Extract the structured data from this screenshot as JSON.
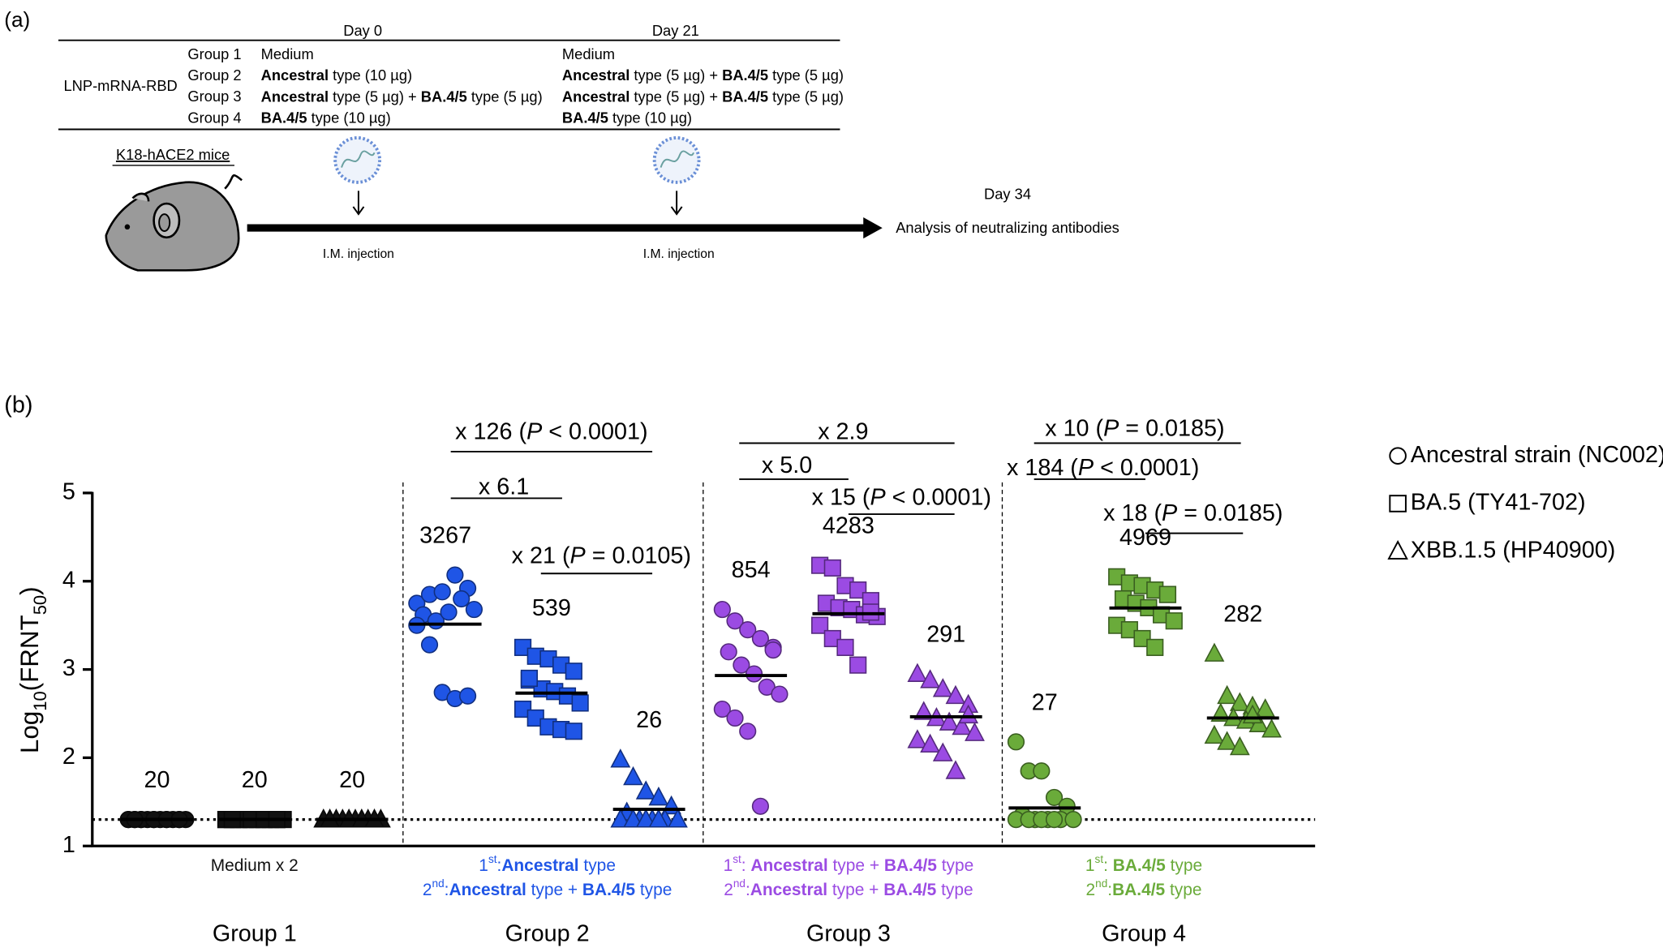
{
  "panel_a": {
    "label": "(a)",
    "days": [
      "Day 0",
      "Day 21"
    ],
    "vaccine": "LNP-mRNA-RBD",
    "rows": [
      {
        "group": "Group 1",
        "day0": [
          {
            "text": "Medium"
          }
        ],
        "day21": [
          {
            "text": "Medium"
          }
        ]
      },
      {
        "group": "Group 2",
        "day0": [
          {
            "text": "Ancestral",
            "bold": true
          },
          {
            "text": " type (10 µg)"
          }
        ],
        "day21": [
          {
            "text": "Ancestral",
            "bold": true
          },
          {
            "text": " type (5 µg) + "
          },
          {
            "text": "BA.4/5",
            "bold": true
          },
          {
            "text": " type (5 µg)"
          }
        ]
      },
      {
        "group": "Group 3",
        "day0": [
          {
            "text": "Ancestral",
            "bold": true
          },
          {
            "text": " type (5 µg) + "
          },
          {
            "text": "BA.4/5",
            "bold": true
          },
          {
            "text": " type (5 µg)"
          }
        ],
        "day21": [
          {
            "text": "Ancestral",
            "bold": true
          },
          {
            "text": " type (5 µg) + "
          },
          {
            "text": "BA.4/5",
            "bold": true
          },
          {
            "text": " type (5 µg)"
          }
        ]
      },
      {
        "group": "Group 4",
        "day0": [
          {
            "text": "BA.4/5",
            "bold": true
          },
          {
            "text": " type (10 µg)"
          }
        ],
        "day21": [
          {
            "text": "BA.4/5",
            "bold": true
          },
          {
            "text": " type (10 µg)"
          }
        ]
      }
    ],
    "mice": "K18-hACE2 mice",
    "injection": [
      "I.M. injection",
      "I.M. injection"
    ],
    "endpoint_day": "Day 34",
    "endpoint": "Analysis of neutralizing antibodies"
  },
  "chart_data": {
    "type": "scatter",
    "panel_label": "(b)",
    "y_label": [
      {
        "text": "Log"
      },
      {
        "text": "10",
        "sub": true
      },
      {
        "text": "(FRNT"
      },
      {
        "text": "50",
        "sub": true
      },
      {
        "text": ")"
      }
    ],
    "ylim": [
      1,
      5
    ],
    "yticks": [
      1,
      2,
      3,
      4,
      5
    ],
    "detection_limit": 1.3,
    "legend": [
      {
        "name": "Ancestral strain (NC002)",
        "shape": "circle"
      },
      {
        "name": "BA.5 (TY41-702)",
        "shape": "square"
      },
      {
        "name": "XBB.1.5 (HP40900)",
        "shape": "triangle"
      }
    ],
    "groups": [
      {
        "name": "Group 1",
        "color": "#111111",
        "regimen": [
          [
            {
              "text": "Medium x 2"
            }
          ]
        ],
        "series": [
          {
            "values": [
              1.3,
              1.3,
              1.3,
              1.3,
              1.3,
              1.3,
              1.3,
              1.3,
              1.3,
              1.3,
              1.3,
              1.3,
              1.3,
              1.3,
              1.3,
              1.3
            ],
            "gmt": 1.301,
            "gmt_label": "20"
          },
          {
            "values": [
              1.3,
              1.3,
              1.3,
              1.3,
              1.3,
              1.3,
              1.3,
              1.3,
              1.3,
              1.3,
              1.3,
              1.3,
              1.3,
              1.3,
              1.3,
              1.3
            ],
            "gmt": 1.301,
            "gmt_label": "20"
          },
          {
            "values": [
              1.3,
              1.3,
              1.3,
              1.3,
              1.3,
              1.3,
              1.3,
              1.3,
              1.3,
              1.3,
              1.3,
              1.3,
              1.3,
              1.3,
              1.3,
              1.3
            ],
            "gmt": 1.301,
            "gmt_label": "20"
          }
        ],
        "comparisons": []
      },
      {
        "name": "Group 2",
        "color": "#1f55e6",
        "regimen": [
          [
            {
              "text": "1"
            },
            {
              "text": "st",
              "sup": true
            },
            {
              "text": ":"
            },
            {
              "text": "Ancestral",
              "bold": true
            },
            {
              "text": " type"
            }
          ],
          [
            {
              "text": "2"
            },
            {
              "text": "nd",
              "sup": true
            },
            {
              "text": ":"
            },
            {
              "text": "Ancestral",
              "bold": true
            },
            {
              "text": " type + "
            },
            {
              "text": "BA.4/5",
              "bold": true
            },
            {
              "text": " type"
            }
          ]
        ],
        "series": [
          {
            "values": [
              3.75,
              3.85,
              3.88,
              4.07,
              3.92,
              3.62,
              3.55,
              3.65,
              3.8,
              3.68,
              3.5,
              3.28,
              2.74,
              2.67,
              2.7
            ],
            "gmt": 3.514,
            "gmt_label": "3267"
          },
          {
            "values": [
              3.25,
              3.15,
              3.12,
              3.05,
              2.98,
              2.88,
              2.78,
              2.75,
              2.7,
              2.62,
              2.55,
              2.45,
              2.35,
              2.32,
              2.3,
              2.9
            ],
            "gmt": 2.732,
            "gmt_label": "539"
          },
          {
            "values": [
              1.98,
              1.78,
              1.62,
              1.55,
              1.45,
              1.38,
              1.3,
              1.3,
              1.3,
              1.3,
              1.3,
              1.3,
              1.3,
              1.3
            ],
            "gmt": 1.415,
            "gmt_label": "26"
          }
        ],
        "comparisons": [
          [
            {
              "text": "x 126 ("
            },
            {
              "text": "P",
              "italic": true
            },
            {
              "text": " < 0.0001)"
            }
          ],
          [
            {
              "text": "x 6.1"
            }
          ],
          [
            {
              "text": "x 21 ("
            },
            {
              "text": "P",
              "italic": true
            },
            {
              "text": " = 0.0105)"
            }
          ]
        ]
      },
      {
        "name": "Group 3",
        "color": "#9b4be3",
        "regimen": [
          [
            {
              "text": "1"
            },
            {
              "text": "st",
              "sup": true
            },
            {
              "text": ": "
            },
            {
              "text": "Ancestral",
              "bold": true
            },
            {
              "text": " type + "
            },
            {
              "text": "BA.4/5",
              "bold": true
            },
            {
              "text": " type"
            }
          ],
          [
            {
              "text": "2"
            },
            {
              "text": "nd",
              "sup": true
            },
            {
              "text": ":"
            },
            {
              "text": "Ancestral",
              "bold": true
            },
            {
              "text": " type + "
            },
            {
              "text": "BA.4/5",
              "bold": true
            },
            {
              "text": " type"
            }
          ]
        ],
        "series": [
          {
            "values": [
              3.68,
              3.55,
              3.45,
              3.35,
              3.25,
              3.2,
              3.05,
              2.95,
              2.8,
              2.72,
              2.55,
              2.45,
              2.3,
              1.45,
              3.22
            ],
            "gmt": 2.931,
            "gmt_label": "854"
          },
          {
            "values": [
              4.18,
              4.15,
              3.95,
              3.9,
              3.78,
              3.75,
              3.7,
              3.68,
              3.62,
              3.6,
              3.5,
              3.35,
              3.25,
              3.05,
              3.65
            ],
            "gmt": 3.632,
            "gmt_label": "4283"
          },
          {
            "values": [
              2.95,
              2.88,
              2.78,
              2.7,
              2.6,
              2.52,
              2.45,
              2.4,
              2.35,
              2.28,
              2.2,
              2.15,
              2.05,
              1.85,
              2.48
            ],
            "gmt": 2.464,
            "gmt_label": "291"
          }
        ],
        "comparisons": [
          [
            {
              "text": "x 2.9"
            }
          ],
          [
            {
              "text": "x 5.0"
            }
          ],
          [
            {
              "text": "x 15  ("
            },
            {
              "text": "P",
              "italic": true
            },
            {
              "text": " < 0.0001)"
            }
          ]
        ]
      },
      {
        "name": "Group 4",
        "color": "#6aab3a",
        "regimen": [
          [
            {
              "text": "1"
            },
            {
              "text": "st",
              "sup": true
            },
            {
              "text": ": "
            },
            {
              "text": "BA.4/5",
              "bold": true
            },
            {
              "text": " type"
            }
          ],
          [
            {
              "text": "2"
            },
            {
              "text": "nd",
              "sup": true
            },
            {
              "text": ":"
            },
            {
              "text": "BA.4/5",
              "bold": true
            },
            {
              "text": " type"
            }
          ]
        ],
        "series": [
          {
            "values": [
              2.18,
              1.85,
              1.85,
              1.55,
              1.45,
              1.35,
              1.3,
              1.3,
              1.3,
              1.3,
              1.3,
              1.3,
              1.3,
              1.3
            ],
            "gmt": 1.431,
            "gmt_label": "27"
          },
          {
            "values": [
              4.05,
              3.98,
              3.95,
              3.9,
              3.85,
              3.8,
              3.75,
              3.7,
              3.62,
              3.55,
              3.5,
              3.45,
              3.35,
              3.25,
              3.85
            ],
            "gmt": 3.696,
            "gmt_label": "4969"
          },
          {
            "values": [
              3.18,
              2.7,
              2.62,
              2.58,
              2.55,
              2.5,
              2.45,
              2.42,
              2.38,
              2.32,
              2.25,
              2.18,
              2.12,
              2.48
            ],
            "gmt": 2.45,
            "gmt_label": "282"
          }
        ],
        "comparisons": [
          [
            {
              "text": "x 10  ("
            },
            {
              "text": "P",
              "italic": true
            },
            {
              "text": " = 0.0185)"
            }
          ],
          [
            {
              "text": "x 184 ("
            },
            {
              "text": "P",
              "italic": true
            },
            {
              "text": " < 0.0001)"
            }
          ],
          [
            {
              "text": "x 18 ("
            },
            {
              "text": "P",
              "italic": true
            },
            {
              "text": " = 0.0185)"
            }
          ]
        ]
      }
    ]
  }
}
